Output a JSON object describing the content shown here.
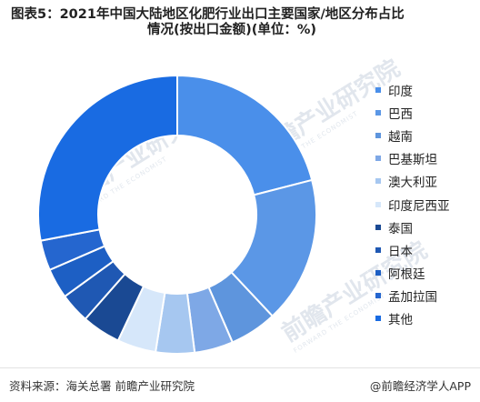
{
  "title_line1": "图表5：2021年中国大陆地区化肥行业出口主要国家/地区分布占比",
  "title_line2": "情况(按出口金额)(单位：%)",
  "chart_data": {
    "type": "pie",
    "donut": true,
    "title": "图表5：2021年中国大陆地区化肥行业出口主要国家/地区分布占比情况(按出口金额)(单位：%)",
    "categories": [
      "印度",
      "巴西",
      "越南",
      "巴基斯坦",
      "澳大利亚",
      "印度尼西亚",
      "泰国",
      "日本",
      "阿根廷",
      "孟加拉国",
      "其他"
    ],
    "values": [
      21.0,
      17.0,
      5.5,
      4.5,
      4.5,
      4.5,
      4.5,
      3.5,
      3.5,
      3.5,
      28.0
    ],
    "colors": [
      "#4a8fea",
      "#5b97e6",
      "#5e95dd",
      "#7ea8e6",
      "#a6c7f0",
      "#d6e7fa",
      "#1a4993",
      "#1f58b3",
      "#1d5fc4",
      "#2566cf",
      "#196be2"
    ],
    "legend": "right"
  },
  "watermark_text": "前瞻产业研究院",
  "watermark_sub": "FORWARD THE ECONOMIST",
  "source": "资料来源：海关总署  前瞻产业研究院",
  "brand": "@前瞻经济学人APP"
}
